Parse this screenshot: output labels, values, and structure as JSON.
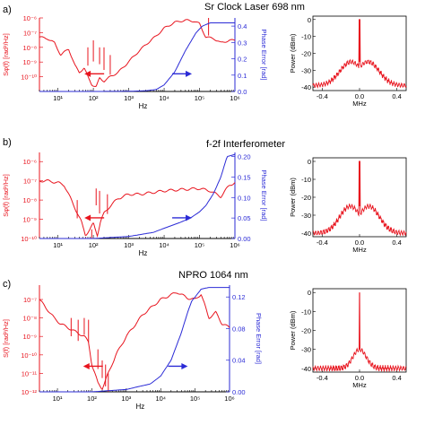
{
  "figure": {
    "colors": {
      "noise": "#e8141e",
      "phase": "#2b2bd6",
      "axis": "#000000"
    }
  },
  "chart_data": [
    {
      "panel_label": "a)",
      "title": "Sr Clock Laser 698 nm",
      "noise_phase": {
        "type": "line",
        "xlabel": "Hz",
        "ylabel_left": "Sφ(f) [rad²/Hz]",
        "ylabel_right": "Phase Error [rad]",
        "x_scale": "log",
        "xlim": [
          3,
          1000000
        ],
        "x_ticks": [
          10,
          100,
          1000,
          10000,
          100000,
          1000000
        ],
        "x_tick_labels": [
          "10¹",
          "10²",
          "10³",
          "10⁴",
          "10⁵",
          "10⁶"
        ],
        "left_scale": "log",
        "left_ylim": [
          1e-11,
          1e-06
        ],
        "left_ticks": [
          1e-10,
          1e-09,
          1e-08,
          1e-07,
          1e-06
        ],
        "left_tick_labels": [
          "10⁻¹⁰",
          "10⁻⁹",
          "10⁻⁸",
          "10⁻⁷",
          "10⁻⁶"
        ],
        "right_ylim": [
          0,
          0.45
        ],
        "right_ticks": [
          0.0,
          0.1,
          0.2,
          0.3,
          0.4
        ],
        "right_tick_labels": [
          "0.0",
          "0.1",
          "0.2",
          "0.3",
          "0.4"
        ],
        "series": [
          {
            "axis": "left",
            "x": [
              3,
              5,
              8,
              12,
              20,
              30,
              40,
              55,
              70,
              90,
              120,
              150,
              200,
              300,
              500,
              800,
              1500,
              3000,
              6000,
              10000,
              20000,
              40000,
              70000,
              100000,
              150000,
              250000,
              400000,
              700000,
              1000000
            ],
            "y": [
              5e-08,
              4e-08,
              2e-08,
              3e-09,
              8e-09,
              6e-10,
              2e-10,
              4e-10,
              1e-10,
              3e-11,
              2e-11,
              8e-11,
              5e-11,
              1e-10,
              2e-10,
              6e-10,
              3e-09,
              1.5e-08,
              6e-08,
              2e-07,
              5e-07,
              7e-07,
              6e-07,
              4e-07,
              5e-08,
              4e-08,
              2e-08,
              3e-08,
              3e-08
            ],
            "spikes": [
              {
                "x": 70,
                "y": 1e-08
              },
              {
                "x": 100,
                "y": 3e-08
              },
              {
                "x": 150,
                "y": 1e-08
              },
              {
                "x": 200,
                "y": 1e-08
              },
              {
                "x": 300,
                "y": 3e-09
              },
              {
                "x": 180000,
                "y": 1e-06
              }
            ]
          },
          {
            "axis": "right",
            "x": [
              3,
              100,
              1000,
              3000,
              6000,
              10000,
              20000,
              40000,
              80000,
              120000,
              200000,
              400000,
              1000000
            ],
            "y": [
              0.0,
              0.0,
              0.001,
              0.004,
              0.012,
              0.04,
              0.12,
              0.25,
              0.36,
              0.4,
              0.42,
              0.42,
              0.42
            ]
          }
        ]
      },
      "spectrum": {
        "type": "line",
        "xlabel": "MHz",
        "ylabel": "Power (dBm)",
        "xlim": [
          -0.5,
          0.5
        ],
        "x_ticks": [
          -0.4,
          0.0,
          0.4
        ],
        "x_tick_labels": [
          "-0.4",
          "0.0",
          "0.4"
        ],
        "ylim": [
          -42,
          2
        ],
        "y_ticks": [
          0,
          -10,
          -20,
          -30,
          -40
        ],
        "y_tick_labels": [
          "0",
          "-10",
          "-20",
          "-30",
          "-40"
        ],
        "noise_floor": -39,
        "shoulder_level": -25,
        "shoulder_center": 0.09,
        "shoulder_width": 0.17,
        "carrier_width": 0.005
      }
    },
    {
      "panel_label": "b)",
      "title": "f-2f Interferometer",
      "noise_phase": {
        "type": "line",
        "xlabel": "Hz",
        "ylabel_left": "Sφ(f) [rad²/Hz]",
        "ylabel_right": "Phase Error [rad]",
        "x_scale": "log",
        "xlim": [
          3,
          1000000
        ],
        "x_ticks": [
          10,
          100,
          1000,
          10000,
          100000,
          1000000
        ],
        "x_tick_labels": [
          "10¹",
          "10²",
          "10³",
          "10⁴",
          "10⁵",
          "10⁶"
        ],
        "left_scale": "log",
        "left_ylim": [
          1e-10,
          3e-06
        ],
        "left_ticks": [
          1e-10,
          1e-09,
          1e-08,
          1e-07,
          1e-06
        ],
        "left_tick_labels": [
          "10⁻¹⁰",
          "10⁻⁹",
          "10⁻⁸",
          "10⁻⁷",
          "10⁻⁶"
        ],
        "right_ylim": [
          0,
          0.21
        ],
        "right_ticks": [
          0.0,
          0.05,
          0.1,
          0.15,
          0.2
        ],
        "right_tick_labels": [
          "0.00",
          "0.05",
          "0.10",
          "0.15",
          "0.20"
        ],
        "series": [
          {
            "axis": "left",
            "x": [
              3,
              5,
              10,
              15,
              20,
              30,
              45,
              60,
              80,
              100,
              130,
              160,
              200,
              300,
              500,
              1000,
              2000,
              5000,
              10000,
              30000,
              100000,
              200000,
              400000,
              700000,
              1000000
            ],
            "y": [
              1e-07,
              1e-07,
              8e-08,
              6e-08,
              2e-08,
              4e-09,
              8e-10,
              1.5e-10,
              3e-10,
              6e-10,
              1.5e-10,
              8e-10,
              2e-09,
              5e-09,
              1.2e-08,
              2e-08,
              2e-08,
              2.5e-08,
              3e-08,
              3.5e-08,
              4e-08,
              3e-08,
              1.5e-08,
              6e-08,
              8e-08
            ],
            "spikes": [
              {
                "x": 35,
                "y": 1e-08
              },
              {
                "x": 90,
                "y": 3e-10
              },
              {
                "x": 120,
                "y": 4e-08
              },
              {
                "x": 150,
                "y": 3e-08
              },
              {
                "x": 250,
                "y": 2e-08
              },
              {
                "x": 60,
                "y": 1.1e-10
              }
            ]
          },
          {
            "axis": "right",
            "x": [
              3,
              100,
              1000,
              5000,
              10000,
              30000,
              60000,
              100000,
              150000,
              250000,
              400000,
              600000,
              1000000
            ],
            "y": [
              0.0,
              0.0,
              0.005,
              0.015,
              0.025,
              0.04,
              0.052,
              0.065,
              0.08,
              0.11,
              0.15,
              0.2,
              0.205
            ]
          }
        ]
      },
      "spectrum": {
        "type": "line",
        "xlabel": "MHz",
        "ylabel": "Power (dBm)",
        "xlim": [
          -0.5,
          0.5
        ],
        "x_ticks": [
          -0.4,
          0.0,
          0.4
        ],
        "x_tick_labels": [
          "-0.4",
          "0.0",
          "0.4"
        ],
        "ylim": [
          -42,
          2
        ],
        "y_ticks": [
          0,
          -10,
          -20,
          -30,
          -40
        ],
        "y_tick_labels": [
          "0",
          "-10",
          "-20",
          "-30",
          "-40"
        ],
        "noise_floor": -40,
        "shoulder_level": -25,
        "shoulder_center": 0.1,
        "shoulder_width": 0.16,
        "carrier_width": 0.005
      }
    },
    {
      "panel_label": "c)",
      "title": "NPRO 1064 nm",
      "noise_phase": {
        "type": "line",
        "xlabel": "Hz",
        "ylabel_left": "S(f) [rad²/Hz]",
        "ylabel_right": "Phase Error [rad]",
        "x_scale": "log",
        "xlim": [
          3,
          1000000
        ],
        "x_ticks": [
          10,
          100,
          1000,
          10000,
          100000,
          1000000
        ],
        "x_tick_labels": [
          "10¹",
          "10²",
          "10³",
          "10⁴",
          "10⁵",
          "10⁶"
        ],
        "left_scale": "log",
        "left_ylim": [
          1e-12,
          6e-07
        ],
        "left_ticks": [
          1e-12,
          1e-11,
          1e-10,
          1e-09,
          1e-08,
          1e-07
        ],
        "left_tick_labels": [
          "10⁻¹²",
          "10⁻¹¹",
          "10⁻¹⁰",
          "10⁻⁹",
          "10⁻⁸",
          "10⁻⁷"
        ],
        "right_ylim": [
          0,
          0.135
        ],
        "right_ticks": [
          0.0,
          0.04,
          0.08,
          0.12
        ],
        "right_tick_labels": [
          "0.00",
          "0.04",
          "0.08",
          "0.12"
        ],
        "series": [
          {
            "axis": "left",
            "x": [
              3,
              5,
              8,
              12,
              20,
              40,
              60,
              80,
              100,
              150,
              200,
              300,
              500,
              1000,
              3000,
              10000,
              30000,
              60000,
              100000,
              150000,
              250000,
              400000,
              600000,
              1000000
            ],
            "y": [
              1e-07,
              3e-08,
              1e-08,
              5e-09,
              3e-09,
              1.5e-09,
              1e-09,
              5e-10,
              3e-11,
              3e-12,
              1.5e-12,
              1e-11,
              1e-10,
              1e-09,
              1.5e-08,
              1e-07,
              2.5e-07,
              1.2e-07,
              1e-07,
              2e-07,
              1e-08,
              2e-08,
              5e-09,
              3e-09
            ],
            "spikes": [
              {
                "x": 25,
                "y": 1e-08
              },
              {
                "x": 40,
                "y": 8e-09
              },
              {
                "x": 60,
                "y": 1e-08
              },
              {
                "x": 80,
                "y": 8e-09
              },
              {
                "x": 150,
                "y": 2e-10
              },
              {
                "x": 200,
                "y": 5e-11
              },
              {
                "x": 250,
                "y": 3e-11
              },
              {
                "x": 300,
                "y": 1e-11
              }
            ]
          },
          {
            "axis": "right",
            "x": [
              3,
              100,
              1000,
              5000,
              10000,
              20000,
              40000,
              60000,
              80000,
              100000,
              150000,
              250000,
              1000000
            ],
            "y": [
              0.0,
              0.0,
              0.003,
              0.01,
              0.02,
              0.04,
              0.075,
              0.1,
              0.115,
              0.12,
              0.13,
              0.132,
              0.132
            ]
          }
        ]
      },
      "spectrum": {
        "type": "line",
        "xlabel": "MHz",
        "ylabel": "Power (dBm)",
        "xlim": [
          -0.5,
          0.5
        ],
        "x_ticks": [
          -0.4,
          0.0,
          0.4
        ],
        "x_tick_labels": [
          "-0.4",
          "0.0",
          "0.4"
        ],
        "ylim": [
          -42,
          2
        ],
        "y_ticks": [
          0,
          -10,
          -20,
          -30,
          -40
        ],
        "y_tick_labels": [
          "0",
          "-10",
          "-20",
          "-30",
          "-40"
        ],
        "noise_floor": -40,
        "shoulder_level": -30,
        "shoulder_center": 0.0,
        "shoulder_width": 0.1,
        "carrier_width": 0.004
      }
    }
  ]
}
